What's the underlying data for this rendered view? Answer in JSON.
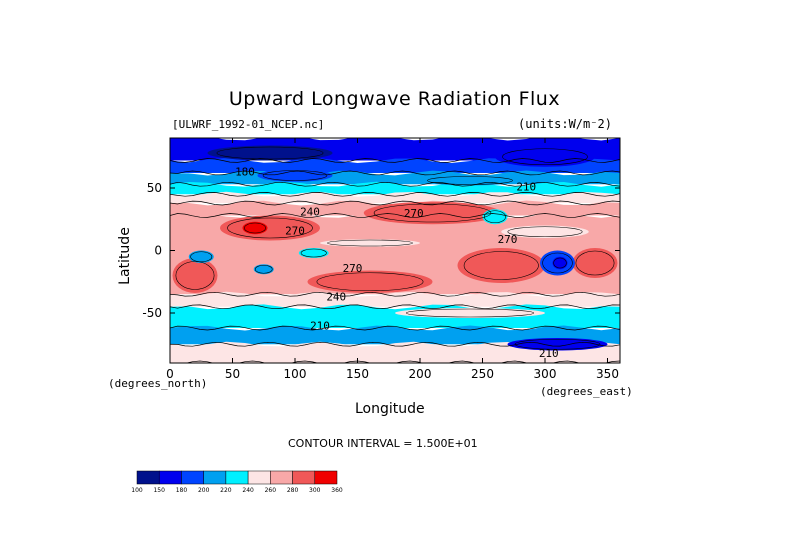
{
  "chart_data": {
    "type": "heatmap",
    "title": "Upward Longwave Radiation Flux",
    "subtitle": "[ULWRF_1992-01_NCEP.nc]",
    "units": "(units:W/m⁻2)",
    "xlabel": "Longitude",
    "ylabel": "Latitude",
    "x_unit_label": "(degrees_north)",
    "x_unit_label_2": "(degrees_east)",
    "xlim": [
      0,
      360
    ],
    "ylim": [
      -90,
      90
    ],
    "x_ticks": [
      "0",
      "50",
      "100",
      "150",
      "200",
      "250",
      "300",
      "350"
    ],
    "x_tick_values": [
      0,
      50,
      100,
      150,
      200,
      250,
      300,
      350
    ],
    "y_ticks": [
      "50",
      "0",
      "-50"
    ],
    "y_tick_values": [
      50,
      0,
      -50
    ],
    "contour_interval_text": "CONTOUR INTERVAL = 1.500E+01",
    "contour_labels": [
      {
        "text": "180",
        "lon": 60,
        "lat": 60
      },
      {
        "text": "240",
        "lon": 112,
        "lat": 28
      },
      {
        "text": "270",
        "lon": 100,
        "lat": 13
      },
      {
        "text": "270",
        "lon": 195,
        "lat": 27
      },
      {
        "text": "270",
        "lon": 270,
        "lat": 6
      },
      {
        "text": "270",
        "lon": 146,
        "lat": -17
      },
      {
        "text": "240",
        "lon": 133,
        "lat": -40
      },
      {
        "text": "210",
        "lon": 120,
        "lat": -63
      },
      {
        "text": "210",
        "lon": 285,
        "lat": 48
      },
      {
        "text": "210",
        "lon": 303,
        "lat": -85
      }
    ],
    "colorbar": {
      "levels": [
        "100",
        "150",
        "180",
        "200",
        "220",
        "240",
        "260",
        "280",
        "300",
        "360"
      ],
      "colors": [
        "#00118c",
        "#0000ee",
        "#0044ff",
        "#00a0f0",
        "#00f0ff",
        "#fde5e5",
        "#f8a8a8",
        "#f05858",
        "#f00000"
      ]
    },
    "bands": [
      {
        "lat_top": 90,
        "lat_bot": 72,
        "fill": "#0000ee"
      },
      {
        "lat_top": 72,
        "lat_bot": 62,
        "fill": "#0044ff"
      },
      {
        "lat_top": 62,
        "lat_bot": 53,
        "fill": "#00a0f0"
      },
      {
        "lat_top": 53,
        "lat_bot": 45,
        "fill": "#00f0ff"
      },
      {
        "lat_top": 45,
        "lat_bot": 38,
        "fill": "#fde5e5"
      },
      {
        "lat_top": 38,
        "lat_bot": 28,
        "fill": "#f8a8a8"
      },
      {
        "lat_top": 28,
        "lat_bot": -35,
        "fill": "#f8a8a8"
      },
      {
        "lat_top": -35,
        "lat_bot": -45,
        "fill": "#fde5e5"
      },
      {
        "lat_top": -45,
        "lat_bot": -62,
        "fill": "#00f0ff"
      },
      {
        "lat_top": -62,
        "lat_bot": -75,
        "fill": "#00a0f0"
      },
      {
        "lat_top": -75,
        "lat_bot": -90,
        "fill": "#fde5e5"
      }
    ],
    "blobs": [
      {
        "lon": 210,
        "lat": 30,
        "rlon": 55,
        "rlat": 9,
        "fill": "#f05858"
      },
      {
        "lon": 80,
        "lat": 18,
        "rlon": 40,
        "rlat": 10,
        "fill": "#f05858"
      },
      {
        "lon": 68,
        "lat": 18,
        "rlon": 10,
        "rlat": 5,
        "fill": "#f00000"
      },
      {
        "lon": 20,
        "lat": -20,
        "rlon": 18,
        "rlat": 14,
        "fill": "#f05858"
      },
      {
        "lon": 160,
        "lat": -25,
        "rlon": 50,
        "rlat": 9,
        "fill": "#f05858"
      },
      {
        "lon": 265,
        "lat": -12,
        "rlon": 35,
        "rlat": 14,
        "fill": "#f05858"
      },
      {
        "lon": 340,
        "lat": -10,
        "rlon": 18,
        "rlat": 12,
        "fill": "#f05858"
      },
      {
        "lon": 310,
        "lat": -10,
        "rlon": 14,
        "rlat": 10,
        "fill": "#0044ff"
      },
      {
        "lon": 312,
        "lat": -10,
        "rlon": 6,
        "rlat": 5,
        "fill": "#0000ee"
      },
      {
        "lon": 25,
        "lat": -5,
        "rlon": 10,
        "rlat": 5,
        "fill": "#00a0f0"
      },
      {
        "lon": 115,
        "lat": -2,
        "rlon": 12,
        "rlat": 4,
        "fill": "#00f0ff"
      },
      {
        "lon": 75,
        "lat": -15,
        "rlon": 8,
        "rlat": 4,
        "fill": "#00a0f0"
      },
      {
        "lon": 260,
        "lat": 27,
        "rlon": 10,
        "rlat": 6,
        "fill": "#00f0ff"
      },
      {
        "lon": 160,
        "lat": 6,
        "rlon": 40,
        "rlat": 3,
        "fill": "#fde5e5"
      },
      {
        "lon": 300,
        "lat": 15,
        "rlon": 35,
        "rlat": 5,
        "fill": "#fde5e5"
      },
      {
        "lon": 240,
        "lat": -50,
        "rlon": 60,
        "rlat": 4,
        "fill": "#fde5e5"
      },
      {
        "lon": 310,
        "lat": -75,
        "rlon": 40,
        "rlat": 5,
        "fill": "#0000ee"
      },
      {
        "lon": 300,
        "lat": 75,
        "rlon": 40,
        "rlat": 8,
        "fill": "#0000ee"
      },
      {
        "lon": 80,
        "lat": 78,
        "rlon": 50,
        "rlat": 6,
        "fill": "#00118c"
      },
      {
        "lon": 100,
        "lat": 60,
        "rlon": 30,
        "rlat": 5,
        "fill": "#0044ff"
      },
      {
        "lon": 240,
        "lat": 56,
        "rlon": 40,
        "rlat": 4,
        "fill": "#00a0f0"
      }
    ]
  }
}
